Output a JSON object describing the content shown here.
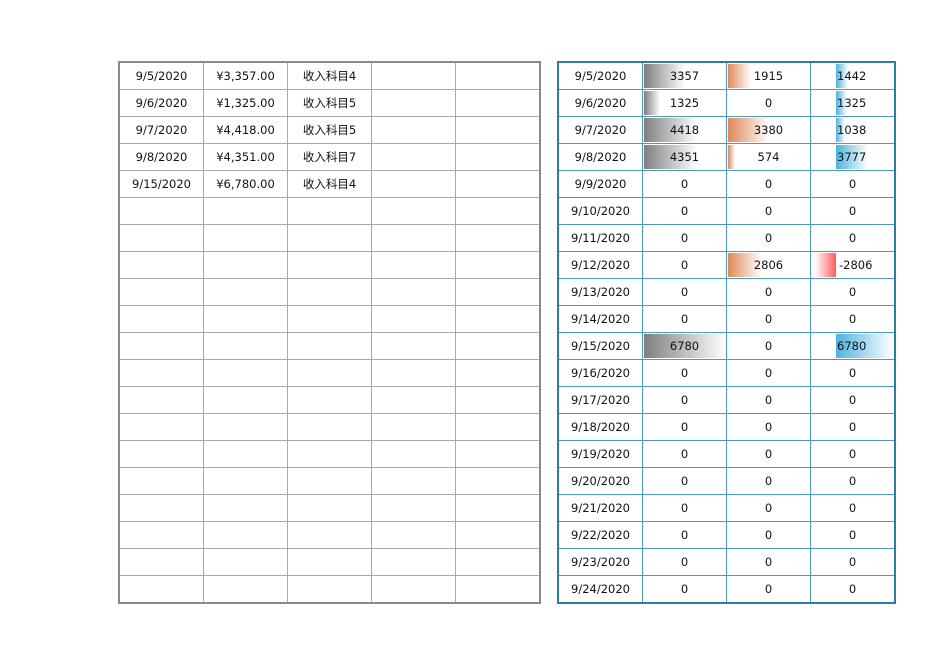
{
  "left_table": {
    "rows": [
      {
        "date": "9/5/2020",
        "amount": "¥3,357.00",
        "category": "收入科目4",
        "c4": "",
        "c5": ""
      },
      {
        "date": "9/6/2020",
        "amount": "¥1,325.00",
        "category": "收入科目5",
        "c4": "",
        "c5": ""
      },
      {
        "date": "9/7/2020",
        "amount": "¥4,418.00",
        "category": "收入科目5",
        "c4": "",
        "c5": ""
      },
      {
        "date": "9/8/2020",
        "amount": "¥4,351.00",
        "category": "收入科目7",
        "c4": "",
        "c5": ""
      },
      {
        "date": "9/15/2020",
        "amount": "¥6,780.00",
        "category": "收入科目4",
        "c4": "",
        "c5": ""
      },
      {
        "date": "",
        "amount": "",
        "category": "",
        "c4": "",
        "c5": ""
      },
      {
        "date": "",
        "amount": "",
        "category": "",
        "c4": "",
        "c5": ""
      },
      {
        "date": "",
        "amount": "",
        "category": "",
        "c4": "",
        "c5": ""
      },
      {
        "date": "",
        "amount": "",
        "category": "",
        "c4": "",
        "c5": ""
      },
      {
        "date": "",
        "amount": "",
        "category": "",
        "c4": "",
        "c5": ""
      },
      {
        "date": "",
        "amount": "",
        "category": "",
        "c4": "",
        "c5": ""
      },
      {
        "date": "",
        "amount": "",
        "category": "",
        "c4": "",
        "c5": ""
      },
      {
        "date": "",
        "amount": "",
        "category": "",
        "c4": "",
        "c5": ""
      },
      {
        "date": "",
        "amount": "",
        "category": "",
        "c4": "",
        "c5": ""
      },
      {
        "date": "",
        "amount": "",
        "category": "",
        "c4": "",
        "c5": ""
      },
      {
        "date": "",
        "amount": "",
        "category": "",
        "c4": "",
        "c5": ""
      },
      {
        "date": "",
        "amount": "",
        "category": "",
        "c4": "",
        "c5": ""
      },
      {
        "date": "",
        "amount": "",
        "category": "",
        "c4": "",
        "c5": ""
      },
      {
        "date": "",
        "amount": "",
        "category": "",
        "c4": "",
        "c5": ""
      },
      {
        "date": "",
        "amount": "",
        "category": "",
        "c4": "",
        "c5": ""
      }
    ]
  },
  "right_table": {
    "colors": {
      "income_bar": "#7f7f7f",
      "expense_bar": "#e0895a",
      "balance_pos_bar": "#4db3e0",
      "balance_neg_bar": "#ff5c5c",
      "border": "#2a7f9c"
    },
    "max_value": 6780,
    "rows": [
      {
        "date": "9/5/2020",
        "income": "3357",
        "expense": "1915",
        "balance": "1442"
      },
      {
        "date": "9/6/2020",
        "income": "1325",
        "expense": "0",
        "balance": "1325"
      },
      {
        "date": "9/7/2020",
        "income": "4418",
        "expense": "3380",
        "balance": "1038"
      },
      {
        "date": "9/8/2020",
        "income": "4351",
        "expense": "574",
        "balance": "3777"
      },
      {
        "date": "9/9/2020",
        "income": "0",
        "expense": "0",
        "balance": "0"
      },
      {
        "date": "9/10/2020",
        "income": "0",
        "expense": "0",
        "balance": "0"
      },
      {
        "date": "9/11/2020",
        "income": "0",
        "expense": "0",
        "balance": "0"
      },
      {
        "date": "9/12/2020",
        "income": "0",
        "expense": "2806",
        "balance": "-2806"
      },
      {
        "date": "9/13/2020",
        "income": "0",
        "expense": "0",
        "balance": "0"
      },
      {
        "date": "9/14/2020",
        "income": "0",
        "expense": "0",
        "balance": "0"
      },
      {
        "date": "9/15/2020",
        "income": "6780",
        "expense": "0",
        "balance": "6780"
      },
      {
        "date": "9/16/2020",
        "income": "0",
        "expense": "0",
        "balance": "0"
      },
      {
        "date": "9/17/2020",
        "income": "0",
        "expense": "0",
        "balance": "0"
      },
      {
        "date": "9/18/2020",
        "income": "0",
        "expense": "0",
        "balance": "0"
      },
      {
        "date": "9/19/2020",
        "income": "0",
        "expense": "0",
        "balance": "0"
      },
      {
        "date": "9/20/2020",
        "income": "0",
        "expense": "0",
        "balance": "0"
      },
      {
        "date": "9/21/2020",
        "income": "0",
        "expense": "0",
        "balance": "0"
      },
      {
        "date": "9/22/2020",
        "income": "0",
        "expense": "0",
        "balance": "0"
      },
      {
        "date": "9/23/2020",
        "income": "0",
        "expense": "0",
        "balance": "0"
      },
      {
        "date": "9/24/2020",
        "income": "0",
        "expense": "0",
        "balance": "0"
      }
    ]
  }
}
